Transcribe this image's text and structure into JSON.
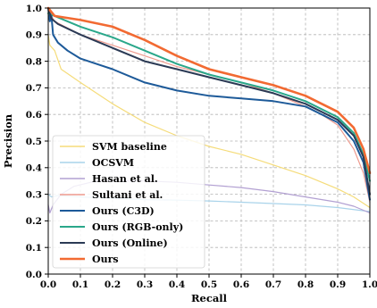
{
  "chart_data": {
    "type": "line",
    "title": "",
    "xlabel": "Recall",
    "ylabel": "Precision",
    "xlim": [
      0.0,
      1.0
    ],
    "ylim": [
      0.0,
      1.0
    ],
    "xticks": [
      "0.0",
      "0.1",
      "0.2",
      "0.3",
      "0.4",
      "0.5",
      "0.6",
      "0.7",
      "0.8",
      "0.9",
      "1.0"
    ],
    "yticks": [
      "0.0",
      "0.1",
      "0.2",
      "0.3",
      "0.4",
      "0.5",
      "0.6",
      "0.7",
      "0.8",
      "0.9",
      "1.0"
    ],
    "grid": true,
    "legend_position": "lower-left",
    "series": [
      {
        "name": "SVM baseline",
        "color": "#f5dc7a",
        "width": 1.2,
        "points": [
          [
            0.0,
            0.9
          ],
          [
            0.005,
            0.86
          ],
          [
            0.02,
            0.84
          ],
          [
            0.04,
            0.77
          ],
          [
            0.1,
            0.72
          ],
          [
            0.2,
            0.64
          ],
          [
            0.3,
            0.57
          ],
          [
            0.4,
            0.52
          ],
          [
            0.5,
            0.48
          ],
          [
            0.6,
            0.45
          ],
          [
            0.7,
            0.41
          ],
          [
            0.8,
            0.37
          ],
          [
            0.9,
            0.32
          ],
          [
            0.95,
            0.29
          ],
          [
            1.0,
            0.25
          ]
        ]
      },
      {
        "name": "OCSVM",
        "color": "#a9d3ea",
        "width": 1.2,
        "points": [
          [
            0.0,
            0.3
          ],
          [
            0.01,
            0.29
          ],
          [
            0.03,
            0.295
          ],
          [
            0.1,
            0.29
          ],
          [
            0.2,
            0.285
          ],
          [
            0.3,
            0.28
          ],
          [
            0.4,
            0.278
          ],
          [
            0.5,
            0.275
          ],
          [
            0.6,
            0.27
          ],
          [
            0.7,
            0.265
          ],
          [
            0.8,
            0.26
          ],
          [
            0.9,
            0.25
          ],
          [
            1.0,
            0.235
          ]
        ]
      },
      {
        "name": "Hasan et al.",
        "color": "#b2a0d2",
        "width": 1.2,
        "points": [
          [
            0.0,
            0.26
          ],
          [
            0.005,
            0.23
          ],
          [
            0.015,
            0.26
          ],
          [
            0.04,
            0.3
          ],
          [
            0.08,
            0.33
          ],
          [
            0.15,
            0.35
          ],
          [
            0.3,
            0.35
          ],
          [
            0.4,
            0.345
          ],
          [
            0.5,
            0.335
          ],
          [
            0.6,
            0.325
          ],
          [
            0.7,
            0.31
          ],
          [
            0.8,
            0.29
          ],
          [
            0.9,
            0.27
          ],
          [
            0.95,
            0.255
          ],
          [
            1.0,
            0.23
          ]
        ]
      },
      {
        "name": "Sultani et al.",
        "color": "#ee9a8e",
        "width": 1.2,
        "points": [
          [
            0.0,
            0.99
          ],
          [
            0.02,
            0.95
          ],
          [
            0.1,
            0.9
          ],
          [
            0.2,
            0.86
          ],
          [
            0.3,
            0.82
          ],
          [
            0.4,
            0.78
          ],
          [
            0.5,
            0.75
          ],
          [
            0.6,
            0.72
          ],
          [
            0.7,
            0.68
          ],
          [
            0.8,
            0.63
          ],
          [
            0.85,
            0.6
          ],
          [
            0.9,
            0.56
          ],
          [
            0.95,
            0.47
          ],
          [
            0.98,
            0.38
          ],
          [
            1.0,
            0.27
          ]
        ]
      },
      {
        "name": "Ours (C3D)",
        "color": "#1d5a99",
        "width": 2.0,
        "points": [
          [
            0.0,
            1.0
          ],
          [
            0.005,
            0.95
          ],
          [
            0.01,
            0.97
          ],
          [
            0.015,
            0.9
          ],
          [
            0.03,
            0.87
          ],
          [
            0.06,
            0.84
          ],
          [
            0.1,
            0.81
          ],
          [
            0.15,
            0.79
          ],
          [
            0.2,
            0.77
          ],
          [
            0.3,
            0.72
          ],
          [
            0.4,
            0.69
          ],
          [
            0.5,
            0.67
          ],
          [
            0.6,
            0.66
          ],
          [
            0.7,
            0.65
          ],
          [
            0.8,
            0.63
          ],
          [
            0.9,
            0.57
          ],
          [
            0.95,
            0.5
          ],
          [
            0.98,
            0.42
          ],
          [
            1.0,
            0.28
          ]
        ]
      },
      {
        "name": "Ours (RGB-only)",
        "color": "#2aa78a",
        "width": 2.0,
        "points": [
          [
            0.0,
            0.98
          ],
          [
            0.02,
            0.97
          ],
          [
            0.1,
            0.93
          ],
          [
            0.2,
            0.89
          ],
          [
            0.3,
            0.84
          ],
          [
            0.4,
            0.79
          ],
          [
            0.5,
            0.75
          ],
          [
            0.6,
            0.72
          ],
          [
            0.7,
            0.69
          ],
          [
            0.8,
            0.65
          ],
          [
            0.9,
            0.59
          ],
          [
            0.95,
            0.53
          ],
          [
            0.98,
            0.45
          ],
          [
            1.0,
            0.35
          ]
        ]
      },
      {
        "name": "Ours (Online)",
        "color": "#2b3a55",
        "width": 2.0,
        "points": [
          [
            0.0,
            1.0
          ],
          [
            0.01,
            0.96
          ],
          [
            0.03,
            0.94
          ],
          [
            0.1,
            0.9
          ],
          [
            0.2,
            0.85
          ],
          [
            0.3,
            0.8
          ],
          [
            0.4,
            0.77
          ],
          [
            0.5,
            0.74
          ],
          [
            0.6,
            0.71
          ],
          [
            0.7,
            0.68
          ],
          [
            0.8,
            0.64
          ],
          [
            0.9,
            0.58
          ],
          [
            0.95,
            0.52
          ],
          [
            0.98,
            0.44
          ],
          [
            1.0,
            0.3
          ]
        ]
      },
      {
        "name": "Ours",
        "color": "#f26a32",
        "width": 2.6,
        "points": [
          [
            0.0,
            1.0
          ],
          [
            0.02,
            0.97
          ],
          [
            0.1,
            0.955
          ],
          [
            0.2,
            0.93
          ],
          [
            0.3,
            0.88
          ],
          [
            0.4,
            0.82
          ],
          [
            0.5,
            0.77
          ],
          [
            0.6,
            0.74
          ],
          [
            0.7,
            0.71
          ],
          [
            0.8,
            0.67
          ],
          [
            0.9,
            0.61
          ],
          [
            0.95,
            0.55
          ],
          [
            0.98,
            0.47
          ],
          [
            1.0,
            0.38
          ]
        ]
      }
    ]
  }
}
